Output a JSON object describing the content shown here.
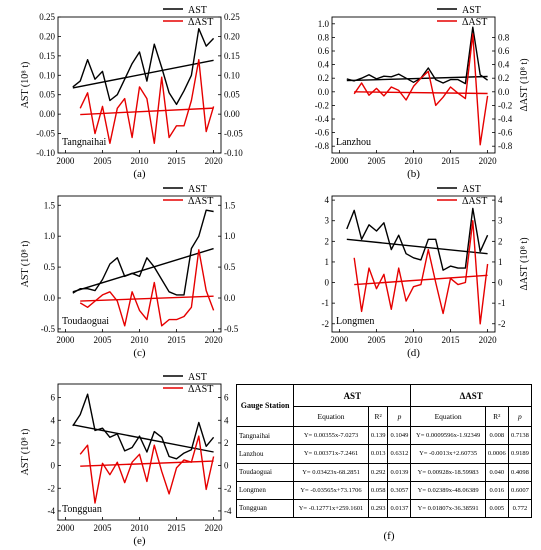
{
  "chart_data": [
    {
      "type": "line",
      "panel": "(a)",
      "station": "Tangnaihai",
      "legend": [
        "AST",
        "ΔAST"
      ],
      "ylabel_left": "AST  (10⁸ t)",
      "xlim": [
        1999,
        2021
      ],
      "ylim": [
        -0.1,
        0.25
      ],
      "yticks": [
        -0.1,
        -0.05,
        0.0,
        0.05,
        0.1,
        0.15,
        0.2,
        0.25
      ],
      "ytick_labels": [
        "-0.10",
        "-0.05",
        "0.00",
        "0.05",
        "0.10",
        "0.15",
        "0.20",
        "0.25"
      ],
      "rytick_labels": [
        "-0.10",
        "-0.05",
        "0.00",
        "0.05",
        "0.10",
        "0.15",
        "0.20",
        "0.25"
      ],
      "xticks": [
        2000,
        2005,
        2010,
        2015,
        2020
      ],
      "series": [
        {
          "name": "AST",
          "color": "#000000",
          "x": [
            2001,
            2002,
            2003,
            2004,
            2005,
            2006,
            2007,
            2008,
            2009,
            2010,
            2011,
            2012,
            2013,
            2014,
            2015,
            2016,
            2017,
            2018,
            2019,
            2020
          ],
          "values": [
            0.07,
            0.085,
            0.14,
            0.09,
            0.11,
            0.035,
            0.05,
            0.09,
            0.13,
            0.16,
            0.085,
            0.18,
            0.12,
            0.055,
            0.025,
            0.06,
            0.1,
            0.22,
            0.175,
            0.195
          ]
        },
        {
          "name": "ΔAST",
          "color": "#e60000",
          "x": [
            2002,
            2003,
            2004,
            2005,
            2006,
            2007,
            2008,
            2009,
            2010,
            2011,
            2012,
            2013,
            2014,
            2015,
            2016,
            2017,
            2018,
            2019,
            2020
          ],
          "values": [
            0.015,
            0.055,
            -0.05,
            0.02,
            -0.075,
            0.015,
            0.04,
            -0.06,
            0.07,
            0.04,
            -0.075,
            0.095,
            -0.06,
            -0.03,
            -0.03,
            0.035,
            0.14,
            -0.045,
            0.02
          ]
        }
      ],
      "trend": {
        "AST": [
          0.0675,
          0.1385
        ],
        "ΔAST": [
          -0.001,
          0.0155
        ]
      }
    },
    {
      "type": "line",
      "panel": "(b)",
      "station": "Lanzhou",
      "legend": [
        "AST",
        "ΔAST"
      ],
      "ylabel_right": "ΔAST  (10⁸ t)",
      "xlim": [
        1999,
        2021
      ],
      "ylim": [
        -0.9,
        1.1
      ],
      "ytick_labels": [
        "-0.8",
        "-0.6",
        "-0.4",
        "-0.2",
        "0.0",
        "0.2",
        "0.4",
        "0.6",
        "0.8",
        "1.0"
      ],
      "rytick_labels": [
        "-0.8",
        "-0.6",
        "-0.4",
        "-0.2",
        "0.0",
        "0.2",
        "0.4",
        "0.6",
        "0.8"
      ],
      "xticks": [
        2000,
        2005,
        2010,
        2015,
        2020
      ],
      "series": [
        {
          "name": "AST",
          "color": "#000000",
          "x": [
            2001,
            2002,
            2003,
            2004,
            2005,
            2006,
            2007,
            2008,
            2009,
            2010,
            2011,
            2012,
            2013,
            2014,
            2015,
            2016,
            2017,
            2018,
            2019,
            2020
          ],
          "values": [
            0.19,
            0.16,
            0.2,
            0.25,
            0.19,
            0.23,
            0.22,
            0.26,
            0.2,
            0.14,
            0.2,
            0.35,
            0.18,
            0.13,
            0.18,
            0.18,
            0.12,
            0.95,
            0.25,
            0.17
          ]
        },
        {
          "name": "ΔAST",
          "color": "#e60000",
          "x": [
            2002,
            2003,
            2004,
            2005,
            2006,
            2007,
            2008,
            2009,
            2010,
            2011,
            2012,
            2013,
            2014,
            2015,
            2016,
            2017,
            2018,
            2019,
            2020
          ],
          "values": [
            -0.03,
            0.13,
            -0.05,
            0.05,
            -0.06,
            0.07,
            0.02,
            -0.12,
            0.08,
            0.2,
            0.3,
            -0.2,
            -0.08,
            0.07,
            -0.02,
            -0.1,
            0.85,
            -0.78,
            -0.06
          ]
        }
      ],
      "trend": {
        "AST": [
          0.165,
          0.225
        ],
        "ΔAST": [
          0.0,
          -0.025
        ]
      }
    },
    {
      "type": "line",
      "panel": "(c)",
      "station": "Toudaoguai",
      "legend": [
        "AST",
        "ΔAST"
      ],
      "ylabel_left": "AST  (10⁸ t)",
      "xlim": [
        1999,
        2021
      ],
      "ylim": [
        -0.55,
        1.65
      ],
      "ytick_labels": [
        "-0.5",
        "0.0",
        "0.5",
        "1.0",
        "1.5"
      ],
      "rytick_labels": [
        "-0.5",
        "0.0",
        "0.5",
        "1.0",
        "1.5"
      ],
      "xticks": [
        2000,
        2005,
        2010,
        2015,
        2020
      ],
      "series": [
        {
          "name": "AST",
          "color": "#000000",
          "x": [
            2001,
            2002,
            2003,
            2004,
            2005,
            2006,
            2007,
            2008,
            2009,
            2010,
            2011,
            2012,
            2013,
            2014,
            2015,
            2016,
            2017,
            2018,
            2019,
            2020
          ],
          "values": [
            0.08,
            0.15,
            0.15,
            0.12,
            0.3,
            0.55,
            0.65,
            0.35,
            0.4,
            0.35,
            0.65,
            0.5,
            0.3,
            0.1,
            0.05,
            0.05,
            0.8,
            1.0,
            1.42,
            1.4
          ]
        },
        {
          "name": "ΔAST",
          "color": "#e60000",
          "x": [
            2002,
            2003,
            2004,
            2005,
            2006,
            2007,
            2008,
            2009,
            2010,
            2011,
            2012,
            2013,
            2014,
            2015,
            2016,
            2017,
            2018,
            2019,
            2020
          ],
          "values": [
            -0.08,
            -0.15,
            -0.05,
            0.05,
            0.1,
            -0.05,
            -0.45,
            0.1,
            -0.2,
            -0.35,
            0.25,
            -0.45,
            -0.35,
            -0.35,
            -0.3,
            -0.15,
            0.78,
            0.12,
            -0.2
          ]
        }
      ],
      "trend": {
        "AST": [
          0.1,
          0.8
        ],
        "ΔAST": [
          -0.05,
          0.03
        ]
      }
    },
    {
      "type": "line",
      "panel": "(d)",
      "station": "Longmen",
      "legend": [
        "AST",
        "ΔAST"
      ],
      "ylabel_right": "ΔAST  (10⁸ t)",
      "xlim": [
        1999,
        2021
      ],
      "ylim": [
        -2.4,
        4.2
      ],
      "ytick_labels": [
        "-2",
        "-1",
        "0",
        "1",
        "2",
        "3",
        "4"
      ],
      "rytick_labels": [
        "-2",
        "-1",
        "0",
        "1",
        "2",
        "3",
        "4"
      ],
      "xticks": [
        2000,
        2005,
        2010,
        2015,
        2020
      ],
      "series": [
        {
          "name": "AST",
          "color": "#000000",
          "x": [
            2001,
            2002,
            2003,
            2004,
            2005,
            2006,
            2007,
            2008,
            2009,
            2010,
            2011,
            2012,
            2013,
            2014,
            2015,
            2016,
            2017,
            2018,
            2019,
            2020
          ],
          "values": [
            2.6,
            3.5,
            2.1,
            2.8,
            2.5,
            2.9,
            1.6,
            2.3,
            1.4,
            1.2,
            1.1,
            2.1,
            2.1,
            0.6,
            0.8,
            0.7,
            0.7,
            3.6,
            1.5,
            2.3
          ]
        },
        {
          "name": "ΔAST",
          "color": "#e60000",
          "x": [
            2002,
            2003,
            2004,
            2005,
            2006,
            2007,
            2008,
            2009,
            2010,
            2011,
            2012,
            2013,
            2014,
            2015,
            2016,
            2017,
            2018,
            2019,
            2020
          ],
          "values": [
            1.2,
            -1.4,
            0.7,
            -0.3,
            0.4,
            -1.3,
            0.7,
            -0.9,
            -0.2,
            -0.1,
            1.6,
            0.0,
            -1.5,
            0.2,
            -0.1,
            0.0,
            3.0,
            -2.0,
            0.9
          ]
        }
      ],
      "trend": {
        "AST": [
          2.1,
          1.4
        ],
        "ΔAST": [
          -0.1,
          0.35
        ]
      }
    },
    {
      "type": "line",
      "panel": "(e)",
      "station": "Tongguan",
      "legend": [
        "AST",
        "ΔAST"
      ],
      "ylabel_left": "AST  (10⁸ t)",
      "xlim": [
        1999,
        2021
      ],
      "ylim": [
        -4.8,
        7.2
      ],
      "ytick_labels": [
        "-4",
        "-2",
        "0",
        "2",
        "4",
        "6"
      ],
      "rytick_labels": [
        "-4",
        "-2",
        "0",
        "2",
        "4",
        "6"
      ],
      "xticks": [
        2000,
        2005,
        2010,
        2015,
        2020
      ],
      "series": [
        {
          "name": "AST",
          "color": "#000000",
          "x": [
            2001,
            2002,
            2003,
            2004,
            2005,
            2006,
            2007,
            2008,
            2009,
            2010,
            2011,
            2012,
            2013,
            2014,
            2015,
            2016,
            2017,
            2018,
            2019,
            2020
          ],
          "values": [
            3.5,
            4.5,
            6.3,
            3.1,
            3.3,
            2.5,
            2.8,
            1.3,
            1.6,
            2.6,
            1.2,
            3.0,
            2.5,
            0.8,
            0.6,
            1.1,
            1.4,
            3.8,
            1.7,
            2.5
          ]
        },
        {
          "name": "ΔAST",
          "color": "#e60000",
          "x": [
            2002,
            2003,
            2004,
            2005,
            2006,
            2007,
            2008,
            2009,
            2010,
            2011,
            2012,
            2013,
            2014,
            2015,
            2016,
            2017,
            2018,
            2019,
            2020
          ],
          "values": [
            1.0,
            1.8,
            -3.3,
            0.2,
            -0.8,
            0.3,
            -1.5,
            0.3,
            1.0,
            -1.4,
            1.8,
            -0.5,
            -2.5,
            -0.2,
            0.5,
            0.3,
            2.6,
            -2.1,
            0.8
          ]
        }
      ],
      "trend": {
        "AST": [
          3.6,
          1.2
        ],
        "ΔAST": [
          -0.05,
          0.4
        ]
      }
    }
  ],
  "table": {
    "panel_label": "(f)",
    "header_station": "Gauge Station",
    "header_ast": "AST",
    "header_dast": "ΔAST",
    "sub_equation": "Equation",
    "sub_r2": "R²",
    "sub_p": "p",
    "rows": [
      {
        "station": "Tangnaihai",
        "ast_eq": "Y= 0.00355x-7.0273",
        "ast_r2": "0.139",
        "ast_p": "0.1049",
        "d_eq": "Y= 0.0009596x-1.92349",
        "d_r2": "0.008",
        "d_p": "0.7138"
      },
      {
        "station": "Lanzhou",
        "ast_eq": "Y= 0.00371x-7.2461",
        "ast_r2": "0.013",
        "ast_p": "0.6312",
        "d_eq": "Y= -0.0013x+2.60735",
        "d_r2": "0.0006",
        "d_p": "0.9189"
      },
      {
        "station": "Toudaoguai",
        "ast_eq": "Y= 0.03423x-68.2851",
        "ast_r2": "0.292",
        "ast_p": "0.0139",
        "d_eq": "Y= 0.00928x-18.59983",
        "d_r2": "0.040",
        "d_p": "0.4098"
      },
      {
        "station": "Longmen",
        "ast_eq": "Y= -0.03565x+73.1706",
        "ast_r2": "0.058",
        "ast_p": "0.3057",
        "d_eq": "Y= 0.02389x-48.06389",
        "d_r2": "0.016",
        "d_p": "0.6007"
      },
      {
        "station": "Tongguan",
        "ast_eq": "Y= -0.12771x+259.1601",
        "ast_r2": "0.293",
        "ast_p": "0.0137",
        "d_eq": "Y= 0.01807x-36.38591",
        "d_r2": "0.005",
        "d_p": "0.772"
      }
    ]
  }
}
